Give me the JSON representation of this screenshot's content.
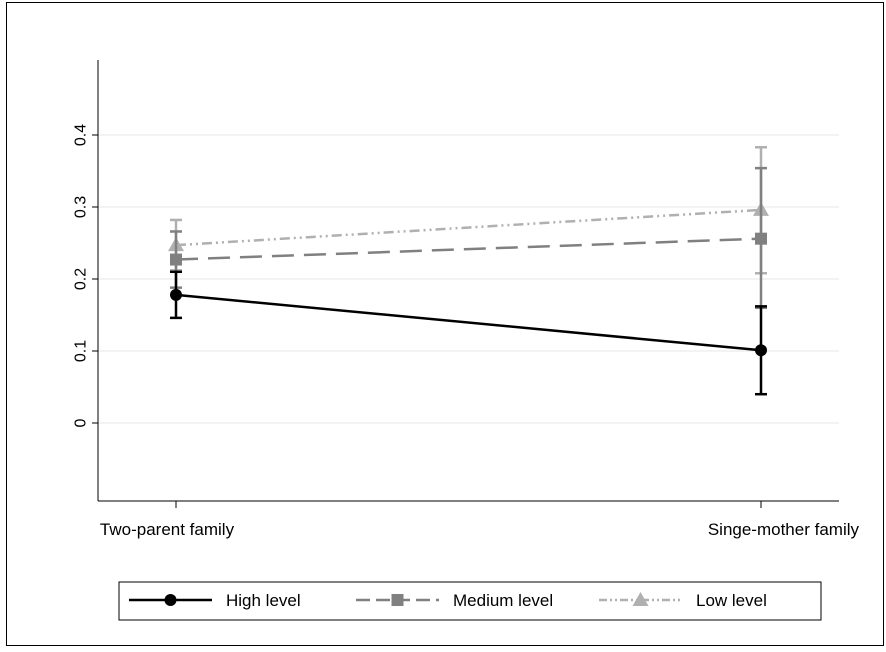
{
  "chart_data": {
    "type": "line",
    "categories": [
      "Two-parent family",
      "Singe-mother family"
    ],
    "y_ticks": [
      "0",
      "0.1",
      "0.2",
      "0.3",
      "0.4"
    ],
    "ylim": [
      -0.1,
      0.5
    ],
    "grid": true,
    "legend_position": "bottom",
    "series": [
      {
        "name": "High level",
        "values": [
          0.178,
          0.101
        ],
        "ci_low": [
          0.146,
          0.04
        ],
        "ci_high": [
          0.21,
          0.162
        ],
        "color": "#000000",
        "marker": "circle",
        "dash": "solid"
      },
      {
        "name": "Medium level",
        "values": [
          0.227,
          0.256
        ],
        "ci_low": [
          0.188,
          0.16
        ],
        "ci_high": [
          0.266,
          0.354
        ],
        "color": "#808080",
        "marker": "square",
        "dash": "long-dash"
      },
      {
        "name": "Low level",
        "values": [
          0.247,
          0.296
        ],
        "ci_low": [
          0.212,
          0.208
        ],
        "ci_high": [
          0.282,
          0.383
        ],
        "color": "#b0b0b0",
        "marker": "triangle",
        "dash": "dash-dot"
      }
    ]
  }
}
